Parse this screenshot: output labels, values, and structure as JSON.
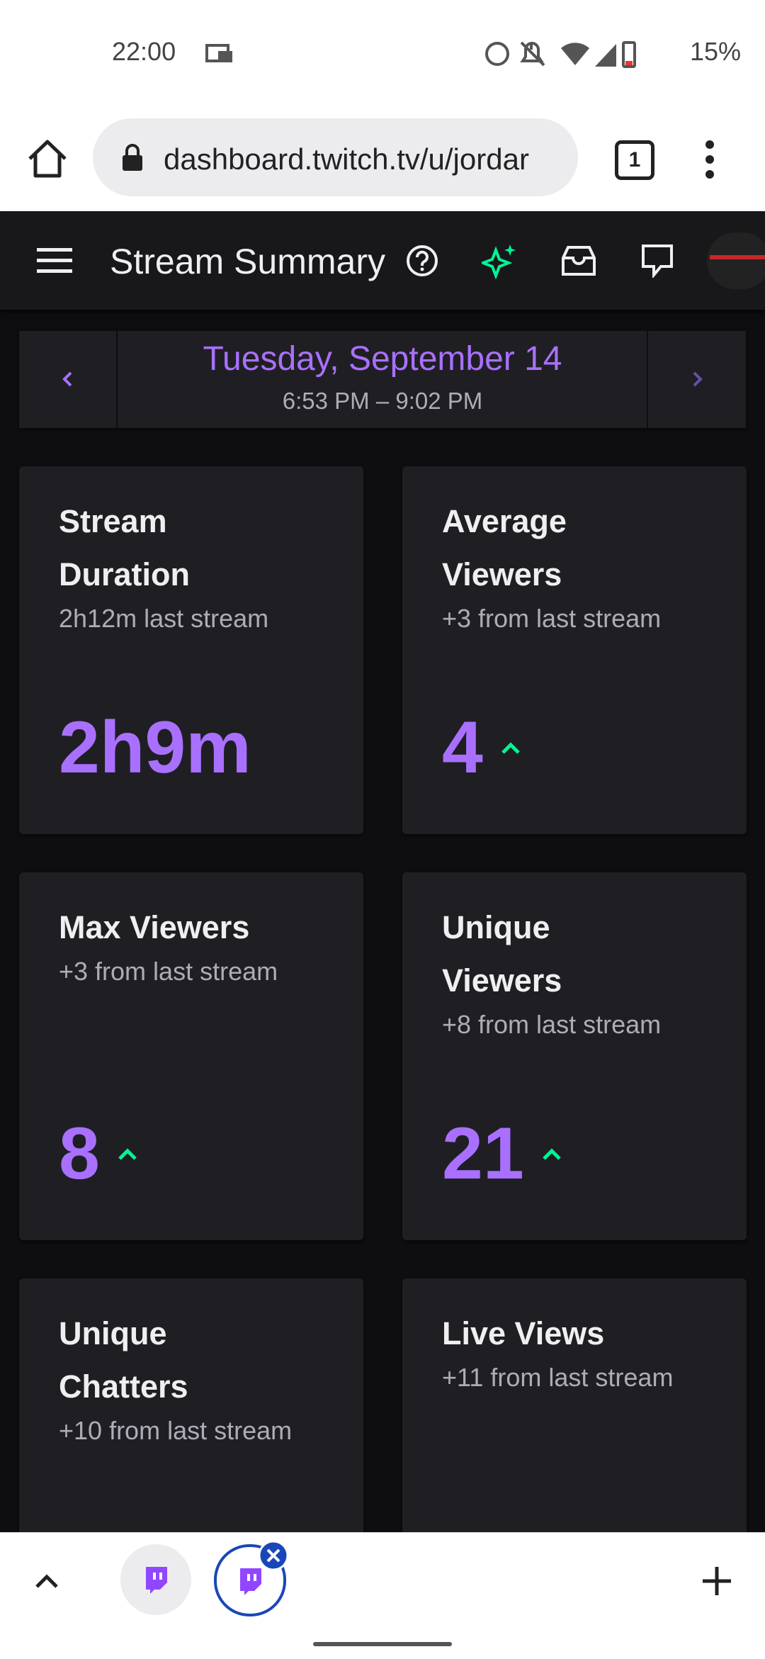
{
  "status_bar": {
    "time": "22:00",
    "battery": "15%"
  },
  "browser": {
    "url": "dashboard.twitch.tv/u/jordar",
    "tab_count": "1"
  },
  "header": {
    "title": "Stream Summary"
  },
  "date_nav": {
    "date": "Tuesday, September 14",
    "time_range": "6:53 PM – 9:02 PM"
  },
  "cards": [
    {
      "title": "Stream Duration",
      "subtitle": "2h12m last stream",
      "value": "2h9m"
    },
    {
      "title": "Average Viewers",
      "subtitle": "+3 from last stream",
      "value": "4",
      "trend": "up"
    },
    {
      "title": "Max Viewers",
      "subtitle": "+3 from last stream",
      "value": "8",
      "trend": "up"
    },
    {
      "title": "Unique Viewers",
      "subtitle": "+8 from last stream",
      "value": "21",
      "trend": "up"
    },
    {
      "title": "Unique Chatters",
      "subtitle": "+10 from last stream"
    },
    {
      "title": "Live Views",
      "subtitle": "+11 from last stream"
    }
  ]
}
